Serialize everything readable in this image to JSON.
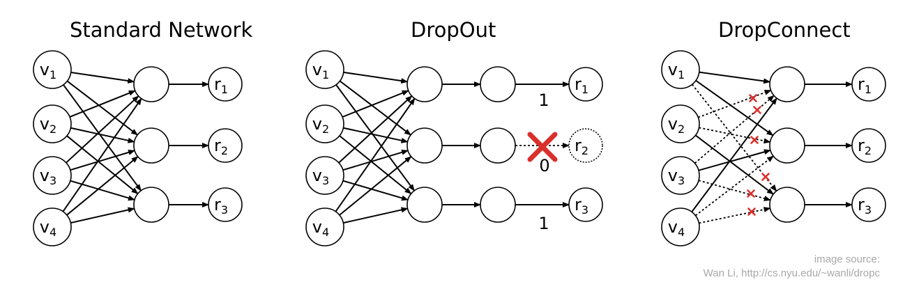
{
  "titles": {
    "standard": "Standard Network",
    "dropout": "DropOut",
    "dropconnect": "DropConnect"
  },
  "nodes": {
    "v1": "v",
    "v1_sub": "1",
    "v2": "v",
    "v2_sub": "2",
    "v3": "v",
    "v3_sub": "3",
    "v4": "v",
    "v4_sub": "4",
    "r1": "r",
    "r1_sub": "1",
    "r2": "r",
    "r2_sub": "2",
    "r3": "r",
    "r3_sub": "3"
  },
  "dropout_weights": [
    "1",
    "0",
    "1"
  ],
  "source": {
    "line1": "image source:",
    "line2": "Wan Li, http://cs.nyu.edu/~wanli/dropc"
  },
  "colors": {
    "ink": "#000000",
    "drop_mark": "#d9302b",
    "source_text": "#a8a8a8"
  }
}
